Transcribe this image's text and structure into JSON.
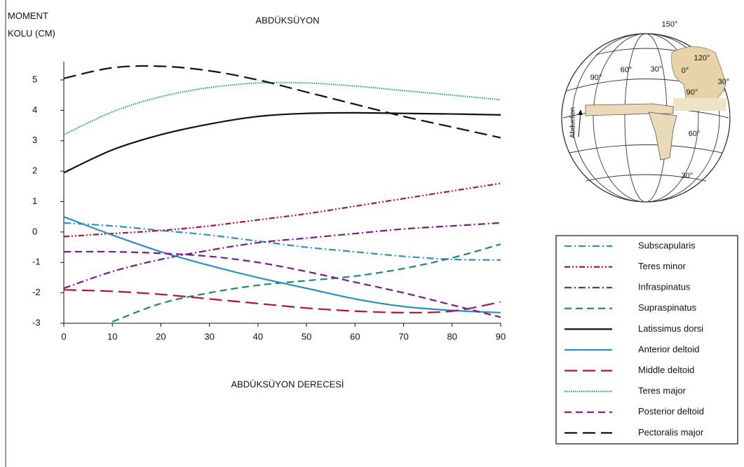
{
  "chart_data": {
    "type": "line",
    "title": "ABDÜKSÜYON",
    "xlabel": "ABDÜKSÜYON DERECESİ",
    "ylabel": "MOMENT KOLU (CM)",
    "x": [
      0,
      10,
      20,
      30,
      40,
      50,
      60,
      70,
      80,
      90
    ],
    "xlim": [
      0,
      90
    ],
    "xticks": [
      0,
      10,
      20,
      30,
      40,
      50,
      60,
      70,
      80,
      90
    ],
    "ylim": [
      -3,
      5.6
    ],
    "yticks": [
      -3,
      -2,
      -1,
      0,
      1,
      2,
      3,
      4,
      5
    ],
    "grid": false,
    "legend": "lower-right",
    "series": [
      {
        "name": "Subscapularis",
        "color": "#2a8fc4",
        "style": "dash-dot",
        "values": [
          0.3,
          0.2,
          0.05,
          -0.1,
          -0.3,
          -0.5,
          -0.65,
          -0.8,
          -0.9,
          -0.92
        ]
      },
      {
        "name": "Teres minor",
        "color": "#b0123e",
        "style": "dash-dot-dot",
        "values": [
          -0.15,
          -0.05,
          0.05,
          0.2,
          0.4,
          0.6,
          0.85,
          1.1,
          1.35,
          1.6
        ]
      },
      {
        "name": "Infraspinatus",
        "color": "#7a1a8a",
        "style": "dash-dot",
        "values": [
          -1.85,
          -1.3,
          -0.9,
          -0.6,
          -0.35,
          -0.2,
          -0.05,
          0.1,
          0.2,
          0.3
        ]
      },
      {
        "name": "Supraspinatus",
        "color": "#1e8a6a",
        "style": "dash",
        "values": [
          null,
          -2.95,
          -2.35,
          -2.0,
          -1.75,
          -1.6,
          -1.45,
          -1.2,
          -0.85,
          -0.4
        ]
      },
      {
        "name": "Latissimus dorsi",
        "color": "#111111",
        "style": "solid",
        "values": [
          1.95,
          2.7,
          3.2,
          3.55,
          3.8,
          3.9,
          3.92,
          3.9,
          3.88,
          3.85
        ]
      },
      {
        "name": "Anterior deltoid",
        "color": "#2a8fc4",
        "style": "solid",
        "values": [
          0.5,
          -0.1,
          -0.65,
          -1.1,
          -1.5,
          -1.85,
          -2.2,
          -2.45,
          -2.58,
          -2.65
        ]
      },
      {
        "name": "Middle deltoid",
        "color": "#b0123e",
        "style": "long-dash",
        "values": [
          -1.9,
          -1.95,
          -2.05,
          -2.2,
          -2.35,
          -2.5,
          -2.6,
          -2.65,
          -2.6,
          -2.3
        ]
      },
      {
        "name": "Teres major",
        "color": "#1a9a8f",
        "style": "dot",
        "values": [
          3.2,
          3.95,
          4.45,
          4.75,
          4.9,
          4.9,
          4.8,
          4.65,
          4.5,
          4.35
        ]
      },
      {
        "name": "Posterior deltoid",
        "color": "#7a1a8a",
        "style": "dash",
        "values": [
          -0.65,
          -0.65,
          -0.7,
          -0.8,
          -1.0,
          -1.3,
          -1.65,
          -2.0,
          -2.4,
          -2.8
        ]
      },
      {
        "name": "Pectoralis major",
        "color": "#111111",
        "style": "long-dash",
        "values": [
          5.05,
          5.4,
          5.45,
          5.3,
          5.0,
          4.6,
          4.2,
          3.8,
          3.45,
          3.1
        ]
      }
    ]
  },
  "diagram": {
    "labels": [
      "150°",
      "120°",
      "90°",
      "60°",
      "30°",
      "0°",
      "30°",
      "90°",
      "60°",
      "30°"
    ],
    "arrow_label": "Abduction"
  }
}
